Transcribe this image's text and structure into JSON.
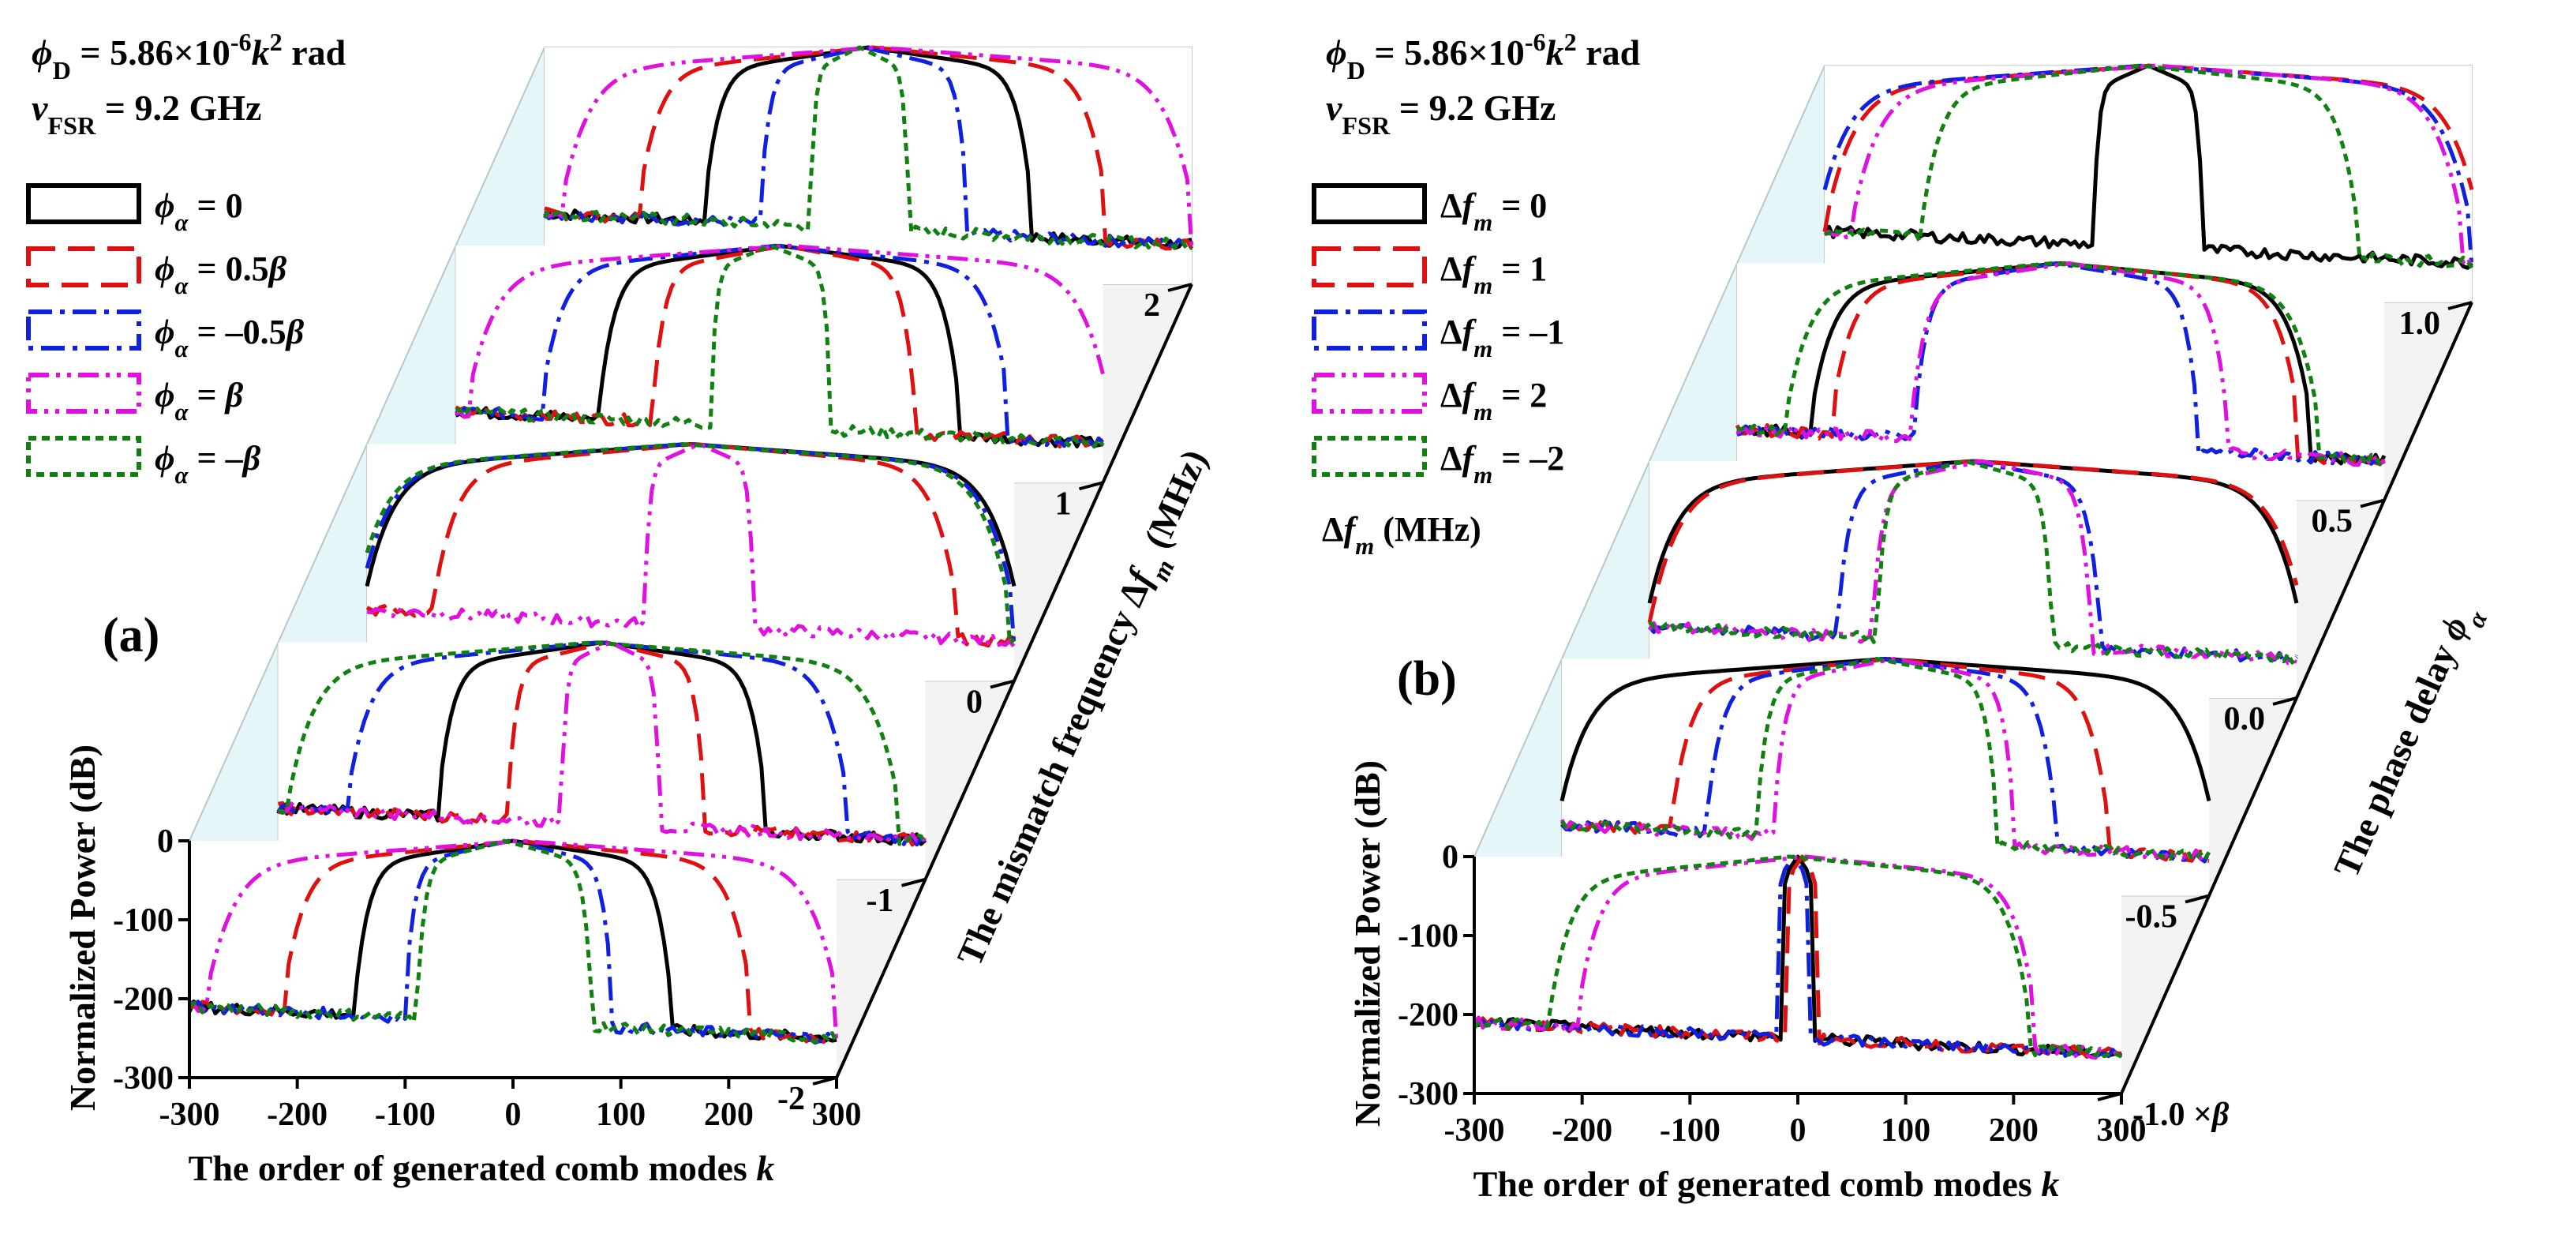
{
  "chart_data": [
    {
      "type": "line",
      "panel_label": "(a)",
      "annotations": [
        "ϕD = 5.86×10⁻⁶k² rad",
        "vFSR = 9.2 GHz"
      ],
      "legend": [
        "ϕα = 0",
        "ϕα = 0.5β",
        "ϕα = –0.5β",
        "ϕα = β",
        "ϕα = –β"
      ],
      "x": {
        "label": "The order of generated comb modes k",
        "range": [
          -300,
          300
        ],
        "ticks": [
          "-300",
          "-200",
          "-100",
          "0",
          "100",
          "200",
          "300"
        ]
      },
      "y": {
        "label": "Normalized Power (dB)",
        "range": [
          -300,
          0
        ],
        "ticks": [
          "0",
          "-100",
          "-200",
          "-300"
        ]
      },
      "depth": {
        "label": "The mismatch frequency Δfm (MHz)",
        "ticks": [
          "-2",
          "-1",
          "0",
          "1",
          "2"
        ],
        "values": [
          -2,
          -1,
          0,
          1,
          2
        ]
      },
      "series": [
        {
          "name": "ϕα = 0",
          "color": "#000000",
          "dash": "solid",
          "shift": 0
        },
        {
          "name": "ϕα = 0.5β",
          "color": "#e01010",
          "dash": "long",
          "shift": 1
        },
        {
          "name": "ϕα = –0.5β",
          "color": "#1020e0",
          "dash": "dashdot",
          "shift": -1
        },
        {
          "name": "ϕα = β",
          "color": "#e010e0",
          "dash": "dashdotdot",
          "shift": 2
        },
        {
          "name": "ϕα = –β",
          "color": "#108010",
          "dash": "dot",
          "shift": -2
        }
      ],
      "slices": [
        {
          "depth": -2,
          "half_widths": {
            "ϕα = 0": 145,
            "ϕα = 0.5β": 215,
            "ϕα = –0.5β": 95,
            "ϕα = β": 290,
            "ϕα = –β": 80
          }
        },
        {
          "depth": -1,
          "half_widths": {
            "ϕα = 0": 150,
            "ϕα = 0.5β": 90,
            "ϕα = –0.5β": 230,
            "ϕα = β": 45,
            "ϕα = –β": 280
          }
        },
        {
          "depth": 0,
          "half_widths": {
            "ϕα = 0": 300,
            "ϕα = 0.5β": 240,
            "ϕα = –0.5β": 300,
            "ϕα = β": 50,
            "ϕα = –β": 300
          }
        },
        {
          "depth": 1,
          "half_widths": {
            "ϕα = 0": 165,
            "ϕα = 0.5β": 120,
            "ϕα = –0.5β": 215,
            "ϕα = β": 295,
            "ϕα = –β": 55
          }
        },
        {
          "depth": 2,
          "half_widths": {
            "ϕα = 0": 150,
            "ϕα = 0.5β": 215,
            "ϕα = –0.5β": 95,
            "ϕα = β": 290,
            "ϕα = –β": 45
          }
        }
      ]
    },
    {
      "type": "line",
      "panel_label": "(b)",
      "annotations": [
        "ϕD = 5.86×10⁻⁶k² rad",
        "vFSR = 9.2 GHz"
      ],
      "legend": [
        "Δfm = 0",
        "Δfm = 1",
        "Δfm = –1",
        "Δfm = 2",
        "Δfm = –2"
      ],
      "legend_unit": "Δfm (MHz)",
      "x": {
        "label": "The order of generated comb modes k",
        "range": [
          -300,
          300
        ],
        "ticks": [
          "-300",
          "-200",
          "-100",
          "0",
          "100",
          "200",
          "300"
        ]
      },
      "y": {
        "label": "Normalized Power (dB)",
        "range": [
          -300,
          0
        ],
        "ticks": [
          "0",
          "-100",
          "-200",
          "-300"
        ]
      },
      "depth": {
        "label": "The phase delay ϕα",
        "ticks": [
          "-1.0 ×β",
          "-0.5",
          "0.0",
          "0.5",
          "1.0"
        ],
        "values": [
          -1.0,
          -0.5,
          0.0,
          0.5,
          1.0
        ]
      },
      "series": [
        {
          "name": "Δfm = 0",
          "color": "#000000",
          "dash": "solid",
          "shift": 0
        },
        {
          "name": "Δfm = 1",
          "color": "#e01010",
          "dash": "long",
          "shift": 1
        },
        {
          "name": "Δfm = –1",
          "color": "#1020e0",
          "dash": "dashdot",
          "shift": -1
        },
        {
          "name": "Δfm = 2",
          "color": "#e010e0",
          "dash": "dashdotdot",
          "shift": 2
        },
        {
          "name": "Δfm = –2",
          "color": "#108010",
          "dash": "dot",
          "shift": -2
        }
      ],
      "slices": [
        {
          "depth": -1.0,
          "half_widths": {
            "Δfm = 0": 15,
            "Δfm = 1": 15,
            "Δfm = –1": 15,
            "Δfm = 2": 210,
            "Δfm = –2": 220
          }
        },
        {
          "depth": -0.5,
          "half_widths": {
            "Δfm = 0": 300,
            "Δfm = 1": 200,
            "Δfm = –1": 160,
            "Δfm = 2": 110,
            "Δfm = –2": 110
          }
        },
        {
          "depth": 0.0,
          "half_widths": {
            "Δfm = 0": 300,
            "Δfm = 1": 300,
            "Δfm = –1": 120,
            "Δfm = 2": 100,
            "Δfm = –2": 80
          }
        },
        {
          "depth": 0.5,
          "half_widths": {
            "Δfm = 0": 230,
            "Δfm = 1": 215,
            "Δfm = –1": 130,
            "Δfm = 2": 145,
            "Δfm = –2": 245
          }
        },
        {
          "depth": 1.0,
          "half_widths": {
            "Δfm = 0": 50,
            "Δfm = 1": 300,
            "Δfm = –1": 300,
            "Δfm = 2": 280,
            "Δfm = –2": 200
          }
        }
      ]
    }
  ]
}
